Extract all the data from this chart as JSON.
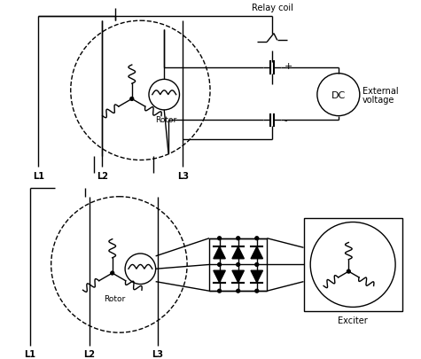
{
  "bg": "#ffffff",
  "lc": "#000000",
  "lw": 1.0,
  "labels": {
    "relay_coil": "Relay coil",
    "rotor_top": "Rotor",
    "dc": "DC",
    "ext_volt1": "External",
    "ext_volt2": "voltage",
    "L1t": "L1",
    "L2t": "L2",
    "L3t": "L3",
    "L1b": "L1",
    "L2b": "L2",
    "L3b": "L3",
    "rotor_bot": "Rotor",
    "exciter": "Exciter"
  }
}
